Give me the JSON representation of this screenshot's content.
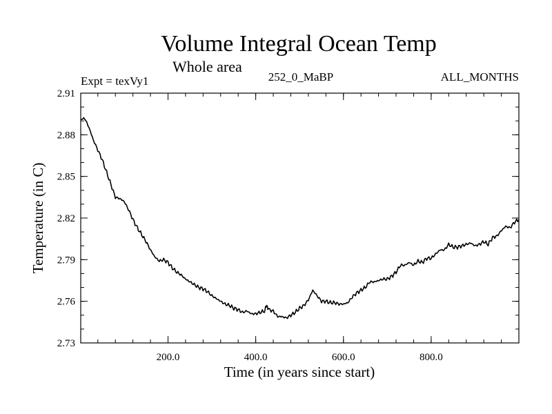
{
  "chart_data": {
    "type": "line",
    "title": "Volume Integral Ocean Temp",
    "subtitle": "Whole area",
    "header_left": "Expt = texVy1",
    "header_center": "252_0_MaBP",
    "header_right": "ALL_MONTHS",
    "xlabel": "Time (in years since start)",
    "ylabel": "Temperature (in C)",
    "xlim": [
      1,
      1000
    ],
    "ylim": [
      2.73,
      2.91
    ],
    "x_ticks": [
      200,
      400,
      600,
      800
    ],
    "x_tick_labels": [
      "200.0",
      "400.0",
      "600.0",
      "800.0"
    ],
    "x_minor_step": 40,
    "y_ticks": [
      2.73,
      2.76,
      2.79,
      2.82,
      2.85,
      2.88,
      2.91
    ],
    "y_tick_labels": [
      "2.73",
      "2.76",
      "2.79",
      "2.82",
      "2.85",
      "2.88",
      "2.91"
    ],
    "y_minor_step": 0.01,
    "series": [
      {
        "name": "Volume Integral Ocean Temp",
        "color": "#000000",
        "x": [
          1,
          10,
          20,
          30,
          40,
          50,
          60,
          70,
          80,
          90,
          100,
          110,
          120,
          130,
          140,
          150,
          160,
          170,
          180,
          190,
          200,
          210,
          220,
          230,
          240,
          250,
          260,
          270,
          280,
          290,
          300,
          310,
          320,
          330,
          340,
          350,
          360,
          370,
          380,
          390,
          400,
          410,
          420,
          425,
          430,
          440,
          450,
          460,
          470,
          480,
          490,
          500,
          510,
          520,
          530,
          540,
          550,
          560,
          570,
          580,
          590,
          600,
          610,
          620,
          630,
          640,
          650,
          660,
          670,
          680,
          690,
          700,
          710,
          720,
          730,
          740,
          750,
          760,
          770,
          780,
          790,
          800,
          810,
          820,
          830,
          840,
          850,
          860,
          870,
          880,
          890,
          900,
          910,
          920,
          930,
          940,
          950,
          960,
          970,
          980,
          990,
          1000
        ],
        "y": [
          2.891,
          2.892,
          2.885,
          2.876,
          2.869,
          2.862,
          2.853,
          2.844,
          2.835,
          2.834,
          2.832,
          2.826,
          2.819,
          2.813,
          2.808,
          2.803,
          2.797,
          2.792,
          2.789,
          2.79,
          2.788,
          2.784,
          2.781,
          2.779,
          2.776,
          2.774,
          2.772,
          2.77,
          2.769,
          2.767,
          2.764,
          2.762,
          2.76,
          2.758,
          2.757,
          2.755,
          2.754,
          2.752,
          2.753,
          2.751,
          2.751,
          2.752,
          2.753,
          2.757,
          2.754,
          2.753,
          2.749,
          2.749,
          2.748,
          2.75,
          2.752,
          2.755,
          2.757,
          2.761,
          2.768,
          2.764,
          2.76,
          2.76,
          2.759,
          2.759,
          2.758,
          2.758,
          2.759,
          2.763,
          2.766,
          2.768,
          2.77,
          2.774,
          2.774,
          2.775,
          2.776,
          2.776,
          2.778,
          2.781,
          2.786,
          2.786,
          2.788,
          2.786,
          2.789,
          2.788,
          2.791,
          2.791,
          2.794,
          2.797,
          2.797,
          2.801,
          2.799,
          2.799,
          2.8,
          2.801,
          2.802,
          2.8,
          2.801,
          2.803,
          2.801,
          2.806,
          2.807,
          2.811,
          2.814,
          2.813,
          2.817,
          2.819
        ]
      }
    ]
  }
}
